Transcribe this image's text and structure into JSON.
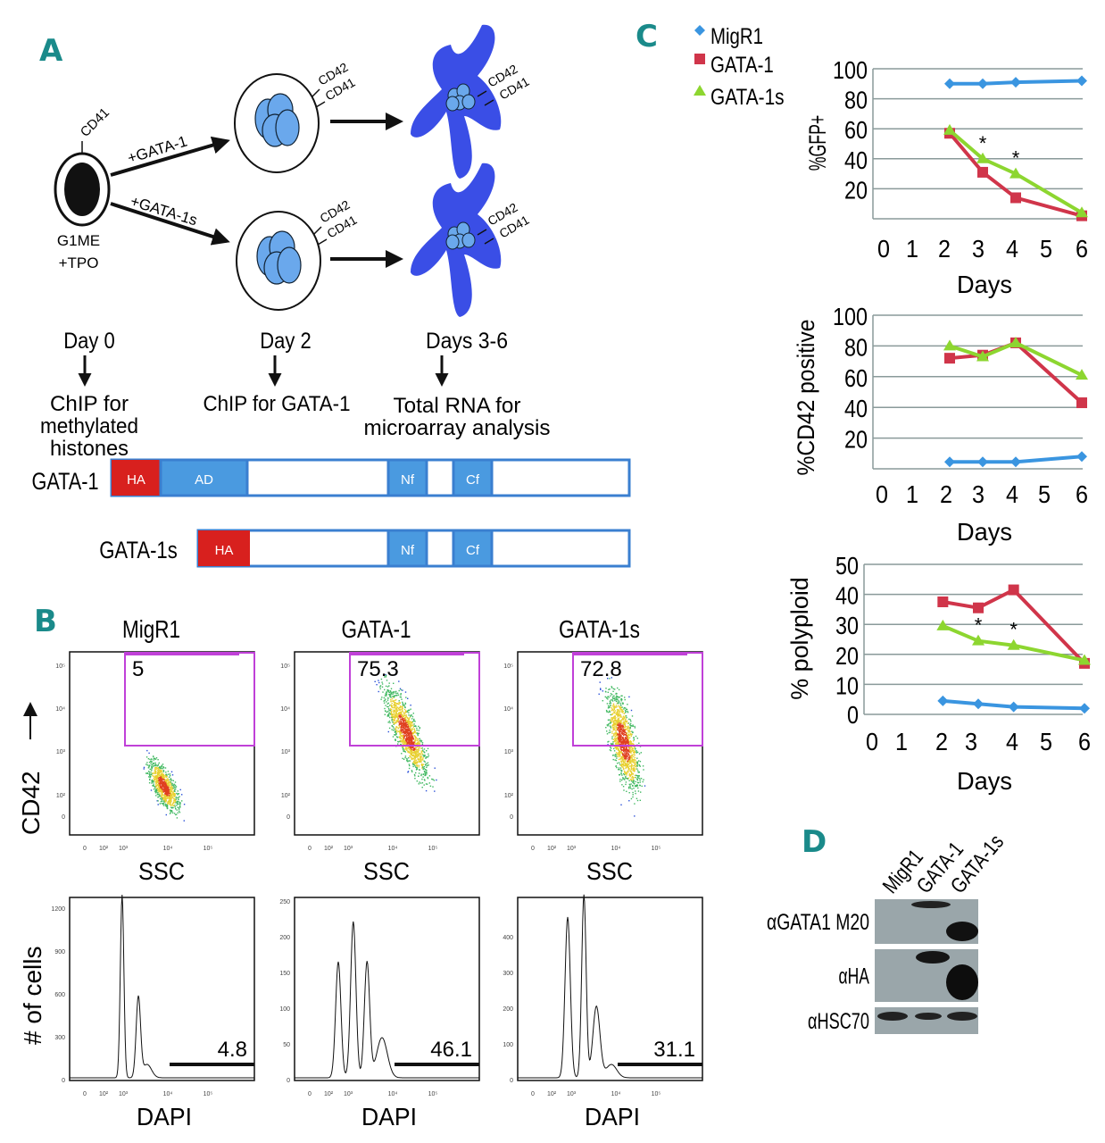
{
  "panels": {
    "a": "A",
    "b": "B",
    "c": "C",
    "d": "D"
  },
  "schematic": {
    "start_cell": {
      "line1": "G1ME",
      "line2": "+TPO",
      "marker": "CD41"
    },
    "arrow_gata1": "+GATA-1",
    "arrow_gata1s": "+GATA-1s",
    "markers": {
      "cd42": "CD42",
      "cd41": "CD41"
    },
    "stages": [
      {
        "day": "Day 0",
        "lines": [
          "ChIP for",
          "methylated",
          "histones"
        ]
      },
      {
        "day": "Day 2",
        "lines": [
          "ChIP for GATA-1"
        ]
      },
      {
        "day": "Days 3-6",
        "lines": [
          "Total RNA for",
          "microarray analysis"
        ]
      }
    ],
    "constructs": [
      {
        "name": "GATA-1",
        "domains": [
          "HA",
          "AD",
          "Nf",
          "Cf"
        ]
      },
      {
        "name": "GATA-1s",
        "domains": [
          "HA",
          "Nf",
          "Cf"
        ]
      }
    ],
    "colors": {
      "ha": "#d8201e",
      "domain": "#4a9ae0",
      "outline": "#3a7fd0",
      "megakaryocyte": "#3a4ee6",
      "nucleus": "#6aa8ec"
    }
  },
  "flow": {
    "scatter": {
      "ylabel": "CD42",
      "xlabel": "SSC",
      "x_ticks": [
        "0",
        "10²",
        "10³",
        "10⁴",
        "10⁵"
      ],
      "y_ticks": [
        "10⁵",
        "10⁴",
        "10³",
        "10²",
        "0"
      ],
      "plots": [
        {
          "title": "MigR1",
          "gate_percent": "5"
        },
        {
          "title": "GATA-1",
          "gate_percent": "75.3"
        },
        {
          "title": "GATA-1s",
          "gate_percent": "72.8"
        }
      ],
      "gate_color": "#c040d8"
    },
    "histograms": {
      "ylabel": "# of cells",
      "xlabel": "DAPI",
      "x_ticks": [
        "0",
        "10²",
        "10³",
        "10⁴",
        "10⁵"
      ],
      "plots": [
        {
          "y_ticks": [
            "0",
            "300",
            "600",
            "900",
            "1200"
          ],
          "gate_percent": "4.8"
        },
        {
          "y_ticks": [
            "0",
            "50",
            "100",
            "150",
            "200",
            "250"
          ],
          "gate_percent": "46.1"
        },
        {
          "y_ticks": [
            "0",
            "100",
            "200",
            "300",
            "400"
          ],
          "gate_percent": "31.1"
        }
      ]
    }
  },
  "chart_data": [
    {
      "type": "line",
      "ylabel": "%GFP+",
      "xlabel": "Days",
      "x_ticks": [
        "0",
        "1",
        "2",
        "3",
        "4",
        "5",
        "6"
      ],
      "y_ticks": [
        "20",
        "40",
        "60",
        "80",
        "100"
      ],
      "xlim": [
        0,
        6
      ],
      "ylim": [
        0,
        100
      ],
      "grid": true,
      "legend": "top-left",
      "x": [
        2,
        3,
        4,
        6
      ],
      "series": [
        {
          "name": "MigR1",
          "color": "#3a95e0",
          "marker": "diamond",
          "values": [
            90,
            90,
            91,
            92
          ]
        },
        {
          "name": "GATA-1",
          "color": "#d0354a",
          "marker": "square",
          "values": [
            57,
            31,
            14,
            2
          ]
        },
        {
          "name": "GATA-1s",
          "color": "#8dd630",
          "marker": "triangle",
          "values": [
            59,
            40,
            30,
            4
          ]
        }
      ],
      "annotations": [
        {
          "x": 3,
          "text": "*"
        },
        {
          "x": 4,
          "text": "*"
        }
      ]
    },
    {
      "type": "line",
      "ylabel": "%CD42 positive",
      "xlabel": "Days",
      "x_ticks": [
        "0",
        "1",
        "2",
        "3",
        "4",
        "5",
        "6"
      ],
      "y_ticks": [
        "20",
        "40",
        "60",
        "80",
        "100"
      ],
      "xlim": [
        0,
        6
      ],
      "ylim": [
        0,
        100
      ],
      "grid": true,
      "x": [
        2,
        3,
        4,
        6
      ],
      "series": [
        {
          "name": "MigR1",
          "color": "#3a95e0",
          "marker": "diamond",
          "values": [
            4.5,
            4.5,
            4.5,
            8
          ]
        },
        {
          "name": "GATA-1",
          "color": "#d0354a",
          "marker": "square",
          "values": [
            72,
            74,
            82,
            43
          ]
        },
        {
          "name": "GATA-1s",
          "color": "#8dd630",
          "marker": "triangle",
          "values": [
            80,
            73,
            82,
            61
          ]
        }
      ],
      "annotations": []
    },
    {
      "type": "line",
      "ylabel": "% polyploid",
      "xlabel": "Days",
      "x_ticks": [
        "0",
        "1",
        "2",
        "3",
        "4",
        "5",
        "6"
      ],
      "y_ticks": [
        "0",
        "10",
        "20",
        "30",
        "40",
        "50"
      ],
      "xlim": [
        0,
        6
      ],
      "ylim": [
        0,
        50
      ],
      "grid": true,
      "x": [
        2,
        3,
        4,
        6
      ],
      "series": [
        {
          "name": "MigR1",
          "color": "#3a95e0",
          "marker": "diamond",
          "values": [
            4.5,
            3.5,
            2.5,
            2
          ]
        },
        {
          "name": "GATA-1",
          "color": "#d0354a",
          "marker": "square",
          "values": [
            37.5,
            35.5,
            41.5,
            17
          ]
        },
        {
          "name": "GATA-1s",
          "color": "#8dd630",
          "marker": "triangle",
          "values": [
            29.5,
            24.5,
            23,
            18
          ]
        }
      ],
      "annotations": [
        {
          "x": 3,
          "text": "*"
        },
        {
          "x": 4,
          "text": "*"
        }
      ]
    }
  ],
  "western": {
    "lanes": [
      "MigR1",
      "GATA-1",
      "GATA-1s"
    ],
    "rows": [
      {
        "label": "αGATA1 M20"
      },
      {
        "label": "αHA"
      },
      {
        "label": "αHSC70"
      }
    ]
  }
}
